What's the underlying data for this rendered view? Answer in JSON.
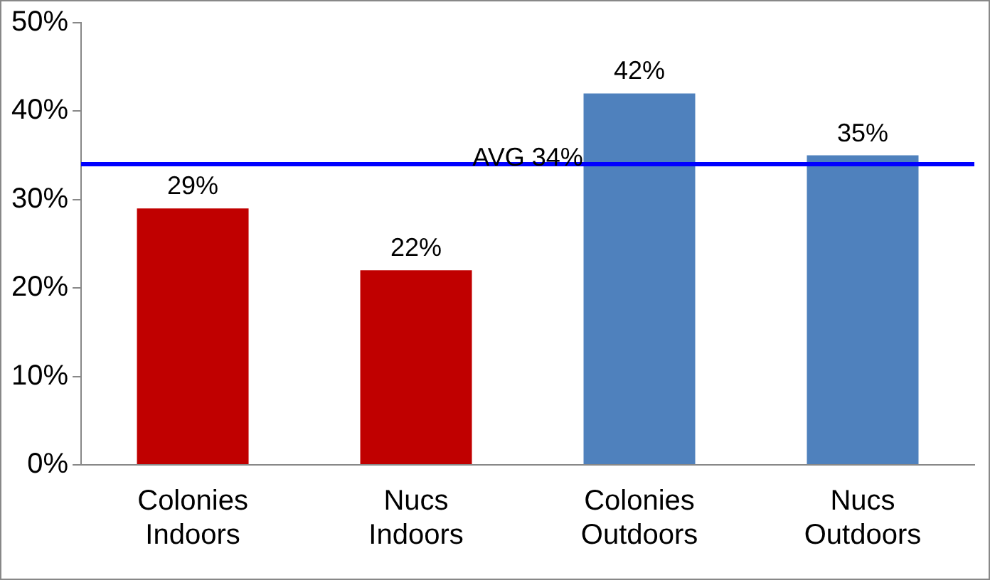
{
  "chart_data": {
    "type": "bar",
    "categories": [
      "Colonies Indoors",
      "Nucs Indoors",
      "Colonies Outdoors",
      "Nucs Outdoors"
    ],
    "values": [
      29,
      22,
      42,
      35
    ],
    "colors": [
      "#c00000",
      "#c00000",
      "#4f81bd",
      "#4f81bd"
    ],
    "value_labels": [
      "29%",
      "22%",
      "42%",
      "35%"
    ],
    "ylim": [
      0,
      50
    ],
    "yticks": [
      {
        "value": 0,
        "label": "0%"
      },
      {
        "value": 10,
        "label": "10%"
      },
      {
        "value": 20,
        "label": "20%"
      },
      {
        "value": 30,
        "label": "30%"
      },
      {
        "value": 40,
        "label": "40%"
      },
      {
        "value": 50,
        "label": "50%"
      }
    ],
    "ref_lines": [
      {
        "axis": "y",
        "value": 34,
        "label": "AVG 34%",
        "color": "#0000ff"
      }
    ],
    "grid": false,
    "legend": false
  }
}
